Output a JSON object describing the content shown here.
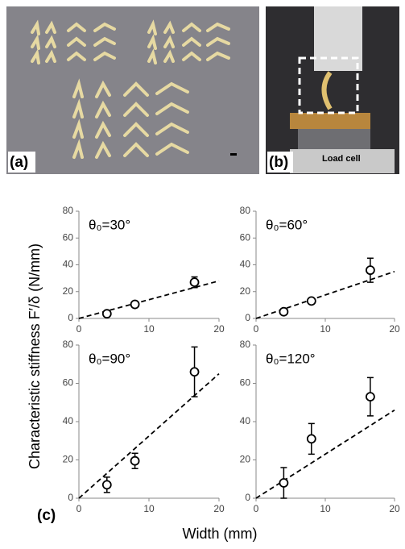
{
  "figure": {
    "panel_a": "(a)",
    "panel_b": "(b)",
    "load_cell": "Load cell",
    "panel_c": "(c)",
    "ylabel": "Characteristic stiffness F′/δ (N/mm)",
    "xlabel": "Width (mm)"
  },
  "chart_data": [
    {
      "type": "scatter",
      "title": "θ₀=30°",
      "x": [
        4,
        8,
        16.5
      ],
      "values": [
        3.5,
        10.5,
        27
      ],
      "errors": [
        2,
        1.5,
        4
      ],
      "fit": {
        "x": [
          0,
          20
        ],
        "values": [
          0,
          28
        ]
      },
      "xlim": [
        0,
        20
      ],
      "ylim": [
        0,
        80
      ],
      "xticks": [
        0,
        10,
        20
      ],
      "yticks": [
        0,
        20,
        40,
        60,
        80
      ],
      "color": "#000000"
    },
    {
      "type": "scatter",
      "title": "θ₀=60°",
      "x": [
        4,
        8,
        16.5
      ],
      "values": [
        5,
        13,
        36
      ],
      "errors": [
        1.5,
        1.5,
        9
      ],
      "fit": {
        "x": [
          0,
          20
        ],
        "values": [
          0,
          35
        ]
      },
      "xlim": [
        0,
        20
      ],
      "ylim": [
        0,
        80
      ],
      "xticks": [
        0,
        10,
        20
      ],
      "yticks": [
        0,
        20,
        40,
        60,
        80
      ],
      "color": "#000000"
    },
    {
      "type": "scatter",
      "title": "θ₀=90°",
      "x": [
        4,
        8,
        16.5
      ],
      "values": [
        7,
        19.5,
        66
      ],
      "errors": [
        4,
        4,
        13
      ],
      "fit": {
        "x": [
          0,
          20
        ],
        "values": [
          0,
          65
        ]
      },
      "xlim": [
        0,
        20
      ],
      "ylim": [
        0,
        80
      ],
      "xticks": [
        0,
        10,
        20
      ],
      "yticks": [
        0,
        20,
        40,
        60,
        80
      ],
      "color": "#000000"
    },
    {
      "type": "scatter",
      "title": "θ₀=120°",
      "x": [
        4,
        8,
        16.5
      ],
      "values": [
        8,
        31,
        53
      ],
      "errors": [
        8,
        8,
        10
      ],
      "fit": {
        "x": [
          0,
          20
        ],
        "values": [
          0,
          46
        ]
      },
      "xlim": [
        0,
        20
      ],
      "ylim": [
        0,
        80
      ],
      "xticks": [
        0,
        10,
        20
      ],
      "yticks": [
        0,
        20,
        40,
        60,
        80
      ],
      "color": "#000000"
    }
  ]
}
